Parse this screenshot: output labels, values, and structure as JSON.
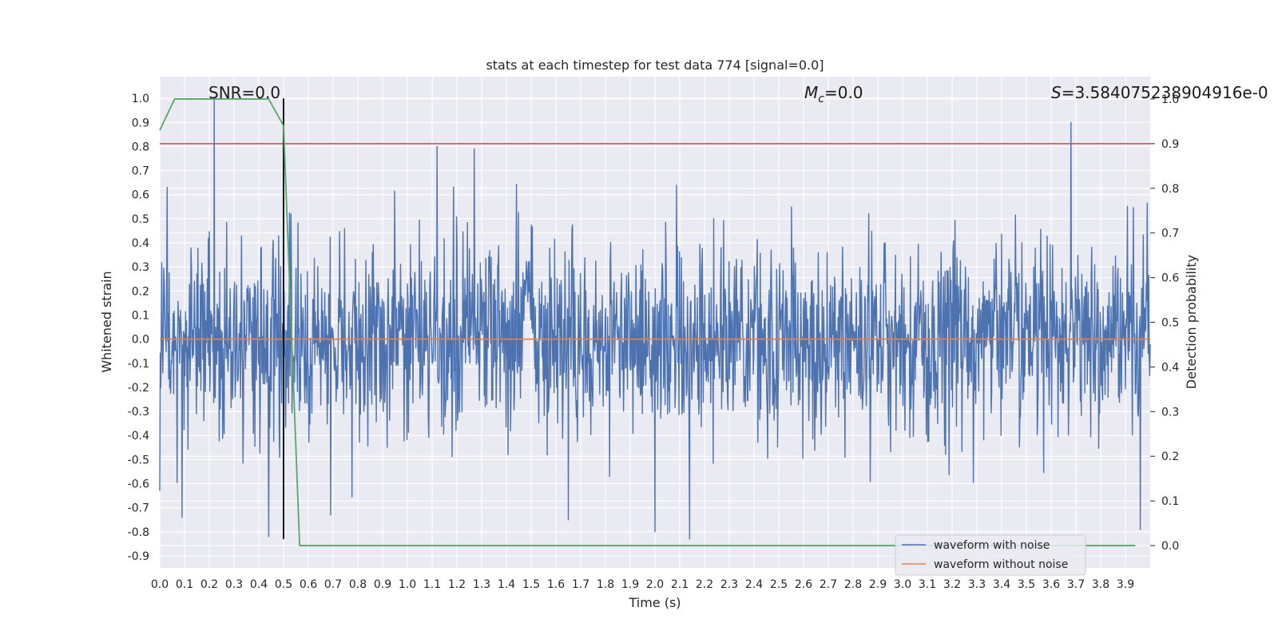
{
  "chart_data": {
    "type": "line",
    "title": "stats at each timestep for test data 774 [signal=0.0]",
    "xlabel": "Time (s)",
    "ylabel": "Whitened strain",
    "ylabel_right": "Detection probability",
    "xlim": [
      0.0,
      4.0
    ],
    "ylim": [
      -0.95,
      1.09
    ],
    "ylim_right": [
      -0.05,
      1.05
    ],
    "x_ticks": [
      "0.0",
      "0.1",
      "0.2",
      "0.3",
      "0.4",
      "0.5",
      "0.6",
      "0.7",
      "0.8",
      "0.9",
      "1.0",
      "1.1",
      "1.2",
      "1.3",
      "1.4",
      "1.5",
      "1.6",
      "1.7",
      "1.8",
      "1.9",
      "2.0",
      "2.1",
      "2.2",
      "2.3",
      "2.4",
      "2.5",
      "2.6",
      "2.7",
      "2.8",
      "2.9",
      "3.0",
      "3.1",
      "3.2",
      "3.3",
      "3.4",
      "3.5",
      "3.6",
      "3.7",
      "3.8",
      "3.9"
    ],
    "y_ticks": [
      "1.0",
      "0.9",
      "0.8",
      "0.7",
      "0.6",
      "0.5",
      "0.4",
      "0.3",
      "0.2",
      "0.1",
      "0.0",
      "-0.1",
      "-0.2",
      "-0.3",
      "-0.4",
      "-0.5",
      "-0.6",
      "-0.7",
      "-0.8",
      "-0.9"
    ],
    "y_ticks_right": [
      "1.0",
      "0.9",
      "0.8",
      "0.7",
      "0.6",
      "0.5",
      "0.4",
      "0.3",
      "0.2",
      "0.1",
      "0.0"
    ],
    "grid": true,
    "legend_position": "lower-right",
    "annotations": {
      "snr": "SNR=0.0",
      "mc_symbol": "M",
      "mc_sub": "c",
      "mc_value": "=0.0",
      "s_symbol": "S",
      "s_value": "=3.584075238904916e-0"
    },
    "series": [
      {
        "name": "waveform with noise",
        "color": "#4c72b0",
        "style": "dense noise, approximately Gaussian, std ~0.2",
        "notable_points": [
          {
            "x": 0.0,
            "y": -0.63
          },
          {
            "x": 0.03,
            "y": 0.63
          },
          {
            "x": 0.09,
            "y": -0.74
          },
          {
            "x": 0.22,
            "y": 1.0
          },
          {
            "x": 0.44,
            "y": -0.82
          },
          {
            "x": 0.53,
            "y": 0.52
          },
          {
            "x": 0.69,
            "y": -0.73
          },
          {
            "x": 1.12,
            "y": 0.8
          },
          {
            "x": 1.27,
            "y": 0.79
          },
          {
            "x": 1.65,
            "y": -0.75
          },
          {
            "x": 2.0,
            "y": -0.8
          },
          {
            "x": 2.14,
            "y": -0.83
          },
          {
            "x": 3.68,
            "y": 0.9
          },
          {
            "x": 3.96,
            "y": -0.79
          }
        ]
      },
      {
        "name": "waveform without noise",
        "color": "#dd8452",
        "x": [
          0.0,
          4.0
        ],
        "y": [
          0.0,
          0.0
        ]
      },
      {
        "name": "",
        "axis": "right",
        "color": "#55a868",
        "x": [
          0.0,
          0.06,
          0.12,
          0.25,
          0.37,
          0.44,
          0.5,
          0.565,
          1.0,
          2.0,
          3.0,
          3.94
        ],
        "y": [
          0.93,
          1.0,
          1.0,
          1.0,
          1.0,
          1.0,
          0.94,
          0.0,
          0.0,
          0.0,
          0.0,
          0.0
        ]
      },
      {
        "name": "",
        "axis": "right",
        "color": "#c44e52",
        "x": [
          0.0,
          4.0
        ],
        "y": [
          0.9,
          0.9
        ]
      },
      {
        "name": "",
        "color": "#000000",
        "type": "vline",
        "x": 0.5,
        "y": [
          -0.83,
          1.0
        ]
      }
    ]
  }
}
